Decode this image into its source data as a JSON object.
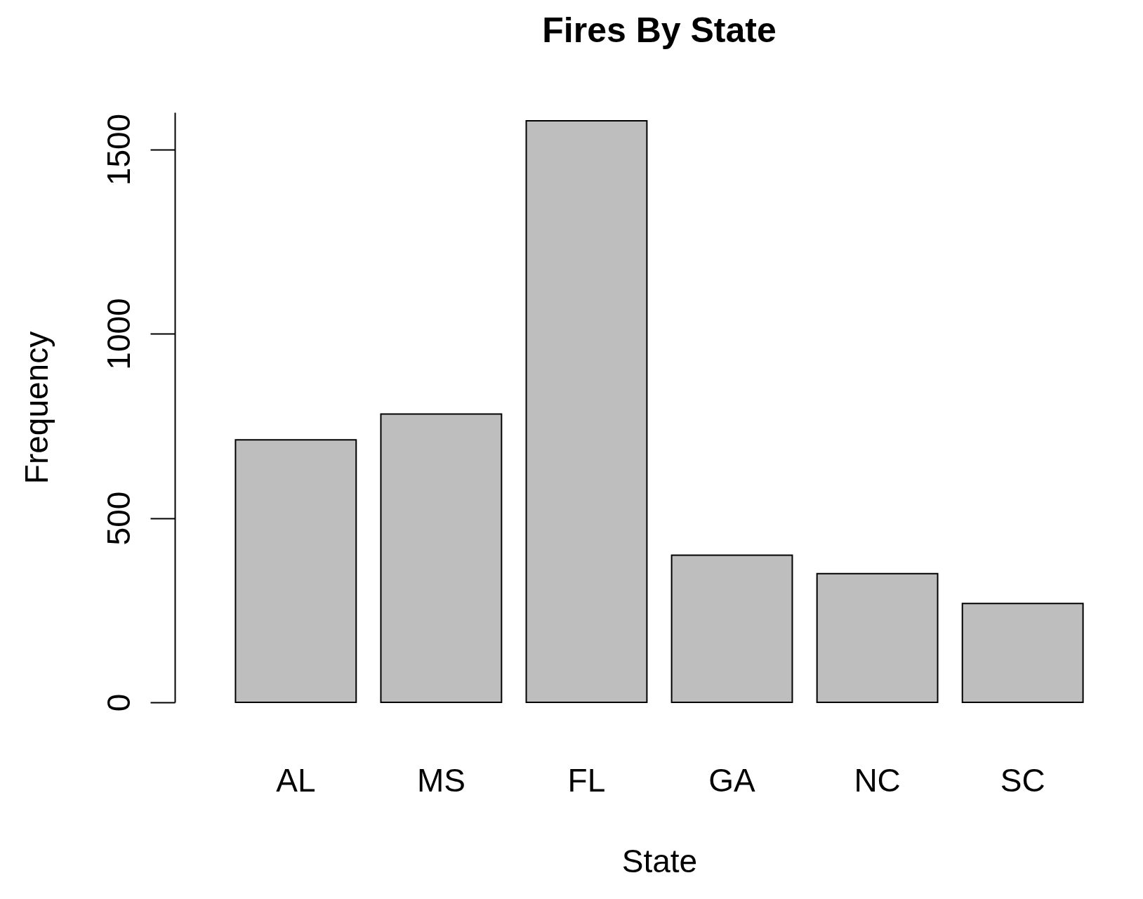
{
  "chart_data": {
    "type": "bar",
    "title": "Fires By State",
    "xlabel": "State",
    "ylabel": "Frequency",
    "categories": [
      "AL",
      "MS",
      "FL",
      "GA",
      "NC",
      "SC"
    ],
    "values": [
      712,
      782,
      1577,
      399,
      349,
      268
    ],
    "color": "#bebebe",
    "ylim": [
      0,
      1600
    ],
    "yticks": [
      0,
      500,
      1000,
      1500
    ],
    "grid": false
  }
}
